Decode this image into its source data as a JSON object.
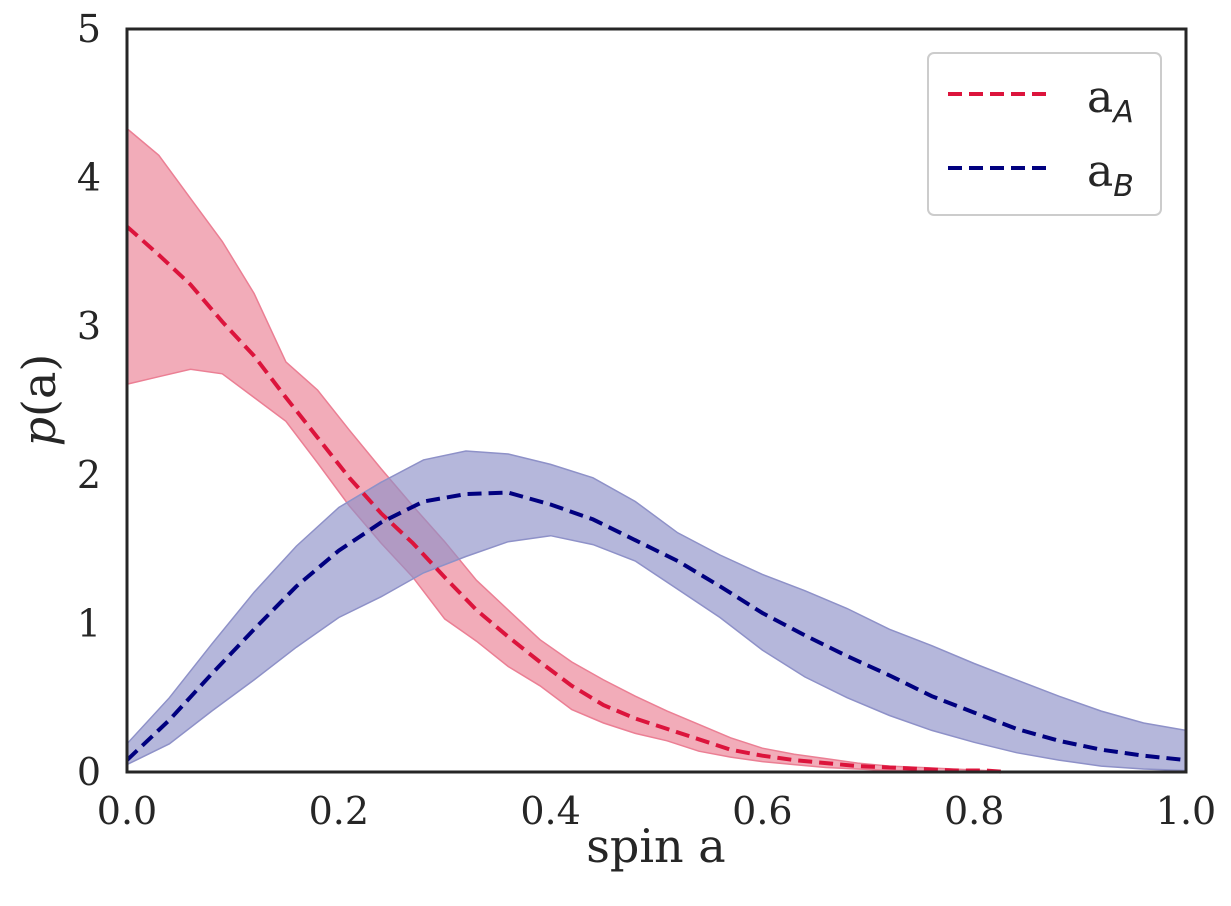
{
  "chart_data": {
    "type": "line",
    "title": "",
    "xlabel": "spin a",
    "ylabel_italic": "p",
    "ylabel_rest": "(a)",
    "xlim": [
      0.0,
      1.0
    ],
    "ylim": [
      0,
      5
    ],
    "xticks": [
      0.0,
      0.2,
      0.4,
      0.6,
      0.8,
      1.0
    ],
    "xtick_labels": [
      "0.0",
      "0.2",
      "0.4",
      "0.6",
      "0.8",
      "1.0"
    ],
    "yticks": [
      0,
      1,
      2,
      3,
      4,
      5
    ],
    "ytick_labels": [
      "0",
      "1",
      "2",
      "3",
      "4",
      "5"
    ],
    "grid": false,
    "legend": "top-right",
    "series": [
      {
        "name": "a_A",
        "legend_main": "a",
        "legend_sub": "A",
        "color": "#dc143c",
        "band_color": "#eb7f94",
        "x": [
          0.0,
          0.03,
          0.06,
          0.09,
          0.12,
          0.15,
          0.18,
          0.21,
          0.24,
          0.27,
          0.3,
          0.33,
          0.36,
          0.39,
          0.42,
          0.45,
          0.48,
          0.51,
          0.54,
          0.57,
          0.6,
          0.63,
          0.66,
          0.69,
          0.72,
          0.75,
          0.78,
          0.81,
          0.83
        ],
        "values": [
          3.67,
          3.48,
          3.28,
          3.03,
          2.8,
          2.52,
          2.25,
          1.98,
          1.74,
          1.54,
          1.31,
          1.09,
          0.91,
          0.74,
          0.58,
          0.45,
          0.36,
          0.29,
          0.22,
          0.15,
          0.11,
          0.08,
          0.06,
          0.04,
          0.03,
          0.02,
          0.01,
          0.01,
          0.0
        ],
        "upper": [
          4.33,
          4.15,
          3.86,
          3.57,
          3.22,
          2.76,
          2.57,
          2.3,
          2.04,
          1.79,
          1.55,
          1.29,
          1.09,
          0.89,
          0.74,
          0.62,
          0.51,
          0.41,
          0.32,
          0.23,
          0.16,
          0.12,
          0.09,
          0.06,
          0.04,
          0.03,
          0.02,
          0.01,
          0.0
        ],
        "lower": [
          2.61,
          2.66,
          2.71,
          2.68,
          2.52,
          2.36,
          2.08,
          1.79,
          1.54,
          1.31,
          1.03,
          0.88,
          0.71,
          0.58,
          0.42,
          0.33,
          0.26,
          0.21,
          0.14,
          0.1,
          0.07,
          0.05,
          0.03,
          0.02,
          0.01,
          0.01,
          0.0,
          0.0,
          0.0
        ]
      },
      {
        "name": "a_B",
        "legend_main": "a",
        "legend_sub": "B",
        "color": "#00007f",
        "band_color": "#8e91c8",
        "x": [
          0.0,
          0.04,
          0.08,
          0.12,
          0.16,
          0.2,
          0.24,
          0.28,
          0.32,
          0.36,
          0.4,
          0.44,
          0.48,
          0.52,
          0.56,
          0.6,
          0.64,
          0.68,
          0.72,
          0.76,
          0.8,
          0.84,
          0.88,
          0.92,
          0.96,
          1.0
        ],
        "values": [
          0.08,
          0.35,
          0.66,
          0.96,
          1.25,
          1.49,
          1.68,
          1.82,
          1.87,
          1.88,
          1.8,
          1.7,
          1.56,
          1.42,
          1.25,
          1.07,
          0.92,
          0.78,
          0.65,
          0.51,
          0.4,
          0.29,
          0.21,
          0.15,
          0.11,
          0.08
        ],
        "upper": [
          0.19,
          0.5,
          0.86,
          1.21,
          1.52,
          1.78,
          1.95,
          2.1,
          2.16,
          2.14,
          2.07,
          1.98,
          1.82,
          1.61,
          1.46,
          1.33,
          1.22,
          1.1,
          0.96,
          0.85,
          0.73,
          0.62,
          0.51,
          0.41,
          0.33,
          0.28
        ],
        "lower": [
          0.05,
          0.19,
          0.41,
          0.62,
          0.84,
          1.04,
          1.18,
          1.34,
          1.45,
          1.55,
          1.59,
          1.53,
          1.42,
          1.23,
          1.04,
          0.82,
          0.64,
          0.5,
          0.38,
          0.28,
          0.2,
          0.13,
          0.08,
          0.04,
          0.02,
          0.01
        ]
      }
    ]
  }
}
